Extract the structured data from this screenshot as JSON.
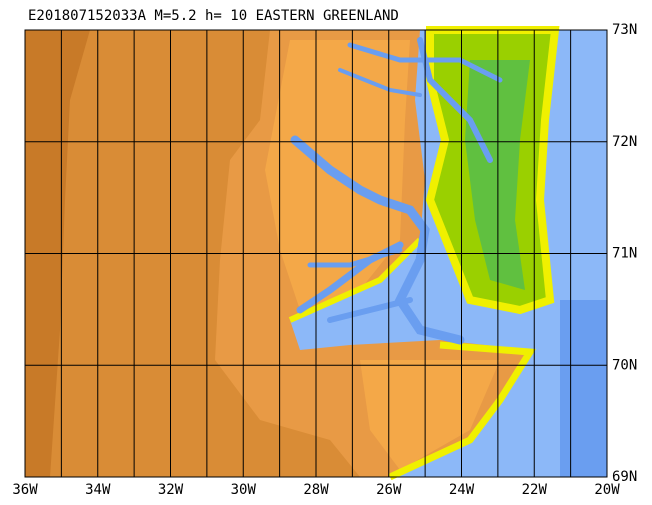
{
  "title": "E201807152033A  M=5.2  h= 10  EASTERN GREENLAND",
  "x_labels": [
    "36W",
    "34W",
    "32W",
    "30W",
    "28W",
    "26W",
    "24W",
    "22W",
    "20W"
  ],
  "y_labels": [
    "73N",
    "72N",
    "71N",
    "70N",
    "69N"
  ]
}
